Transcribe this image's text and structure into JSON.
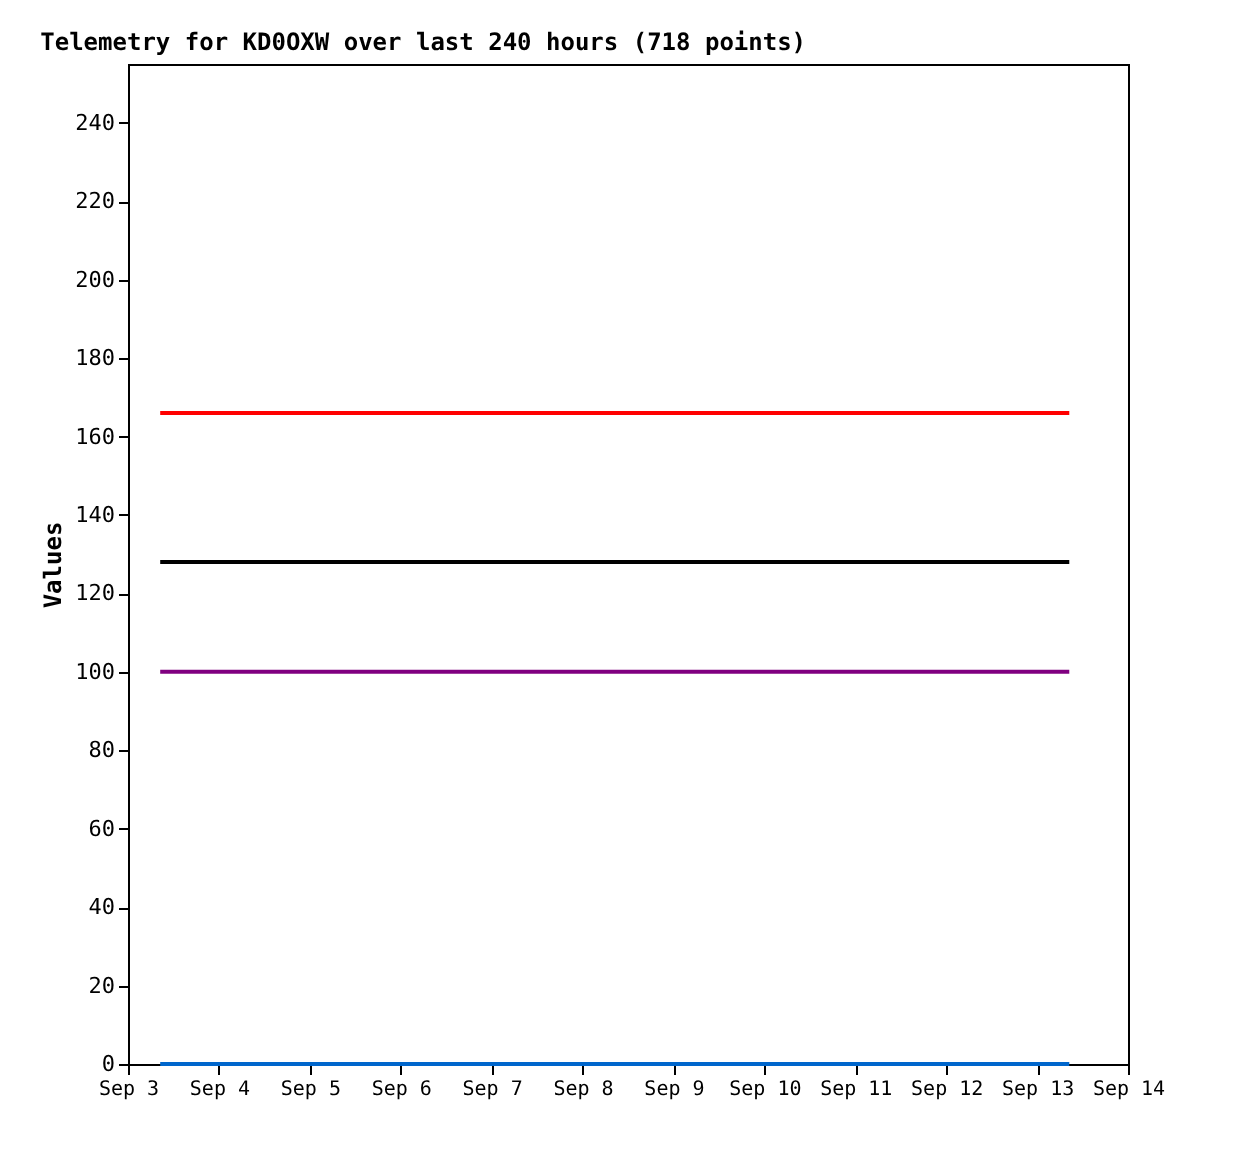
{
  "chart_data": {
    "type": "line",
    "title": "Telemetry for KD0OXW over last 240 hours (718 points)",
    "ylabel": "Values",
    "x": [
      "--09-03T08:30",
      "--09-13T08:30"
    ],
    "series": [
      {
        "color": "#ff0000",
        "values": [
          166,
          166
        ]
      },
      {
        "color": "#000000",
        "values": [
          128,
          128
        ]
      },
      {
        "color": "#800080",
        "values": [
          100,
          100
        ]
      },
      {
        "color": "#0066cc",
        "values": [
          0,
          0
        ]
      }
    ],
    "xlim": [
      "--09-03",
      "--09-14"
    ],
    "xticks": [
      {
        "value": "--09-03",
        "label": "Sep 3"
      },
      {
        "value": "--09-04",
        "label": "Sep 4"
      },
      {
        "value": "--09-05",
        "label": "Sep 5"
      },
      {
        "value": "--09-06",
        "label": "Sep 6"
      },
      {
        "value": "--09-07",
        "label": "Sep 7"
      },
      {
        "value": "--09-08",
        "label": "Sep 8"
      },
      {
        "value": "--09-09",
        "label": "Sep 9"
      },
      {
        "value": "--09-10",
        "label": "Sep 10"
      },
      {
        "value": "--09-11",
        "label": "Sep 11"
      },
      {
        "value": "--09-12",
        "label": "Sep 12"
      },
      {
        "value": "--09-13",
        "label": "Sep 13"
      },
      {
        "value": "--09-14",
        "label": "Sep 14"
      }
    ],
    "ylim": [
      0,
      255
    ],
    "yticks": [
      0,
      20,
      40,
      60,
      80,
      100,
      120,
      140,
      160,
      180,
      200,
      220,
      240
    ],
    "grid": false,
    "marker": "none",
    "line_style": "solid"
  }
}
